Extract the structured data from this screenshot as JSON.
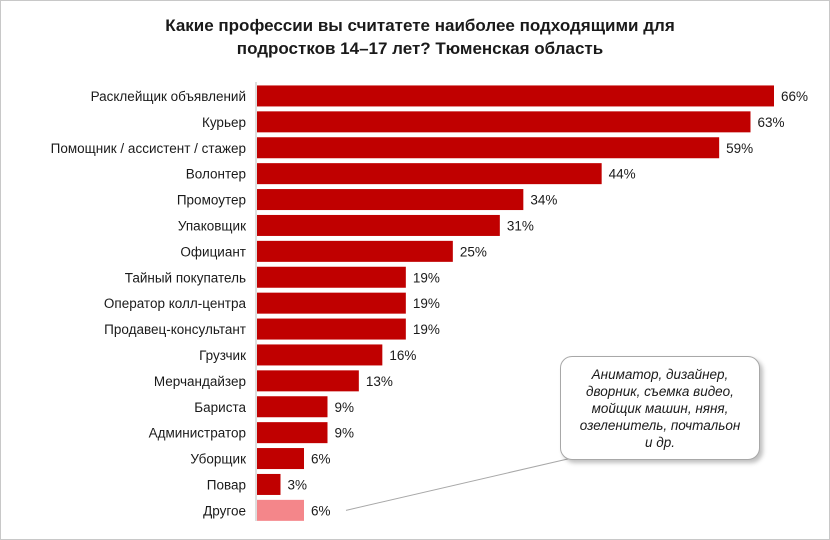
{
  "chart_data": {
    "type": "bar",
    "orientation": "horizontal",
    "title": "Какие профессии вы считатете наиболее подходящими для подростков 14–17 лет? Тюменская область",
    "title_lines": [
      "Какие профессии вы считатете наиболее подходящими для",
      "подростков 14–17 лет? Тюменская область"
    ],
    "categories": [
      "Расклейщик объявлений",
      "Курьер",
      "Помощник / ассистент / стажер",
      "Волонтер",
      "Промоутер",
      "Упаковщик",
      "Официант",
      "Тайный покупатель",
      "Оператор колл-центра",
      "Продавец-консультант",
      "Грузчик",
      "Мерчандайзер",
      "Бариста",
      "Администратор",
      "Уборщик",
      "Повар",
      "Другое"
    ],
    "values": [
      66,
      63,
      59,
      44,
      34,
      31,
      25,
      19,
      19,
      19,
      16,
      13,
      9,
      9,
      6,
      3,
      6
    ],
    "value_labels": [
      "66%",
      "63%",
      "59%",
      "44%",
      "34%",
      "31%",
      "25%",
      "19%",
      "19%",
      "19%",
      "16%",
      "13%",
      "9%",
      "9%",
      "6%",
      "3%",
      "6%"
    ],
    "unit": "%",
    "xlim": [
      0,
      66
    ],
    "grid": false,
    "legend": "none",
    "colors": {
      "bar": "#c00000",
      "highlight": "#f4868a"
    },
    "highlight_category": "Другое",
    "annotation": {
      "lines": [
        "Аниматор, дизайнер,",
        "дворник, съемка видео,",
        "мойщик машин, няня,",
        "озеленитель, почтальон",
        "и др."
      ],
      "points_to": "Другое"
    }
  }
}
